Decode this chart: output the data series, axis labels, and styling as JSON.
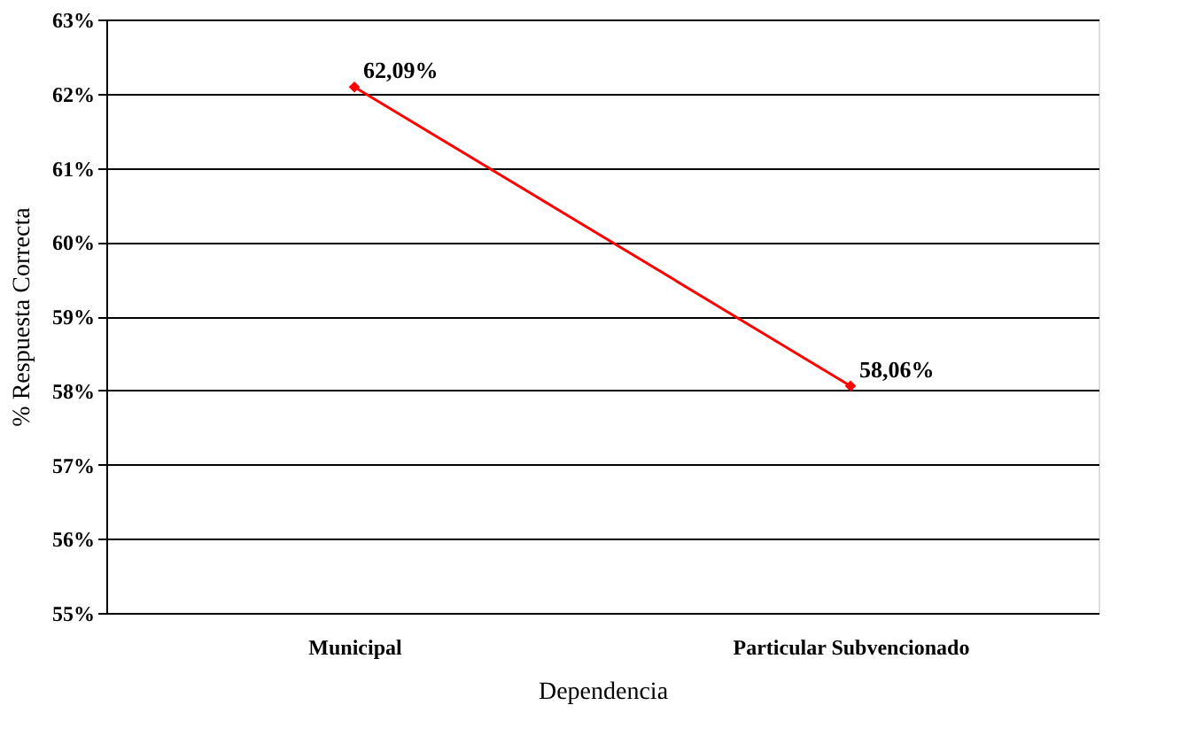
{
  "chart_data": {
    "type": "line",
    "xlabel": "Dependencia",
    "ylabel": "% Respuesta Correcta",
    "categories": [
      "Municipal",
      "Particular Subvencionado"
    ],
    "series": [
      {
        "color": "#ff0000",
        "values": [
          62.09,
          58.06
        ],
        "value_labels": [
          "62,09%",
          "58,06%"
        ]
      }
    ],
    "ylim": [
      55,
      63
    ],
    "yticks": [
      {
        "value": 55,
        "label": "55%"
      },
      {
        "value": 56,
        "label": "56%"
      },
      {
        "value": 57,
        "label": "57%"
      },
      {
        "value": 58,
        "label": "58%"
      },
      {
        "value": 59,
        "label": "59%"
      },
      {
        "value": 60,
        "label": "60%"
      },
      {
        "value": 61,
        "label": "61%"
      },
      {
        "value": 62,
        "label": "62%"
      },
      {
        "value": 63,
        "label": "63%"
      }
    ],
    "grid": "y",
    "marker": "diamond",
    "line_style": "solid"
  }
}
